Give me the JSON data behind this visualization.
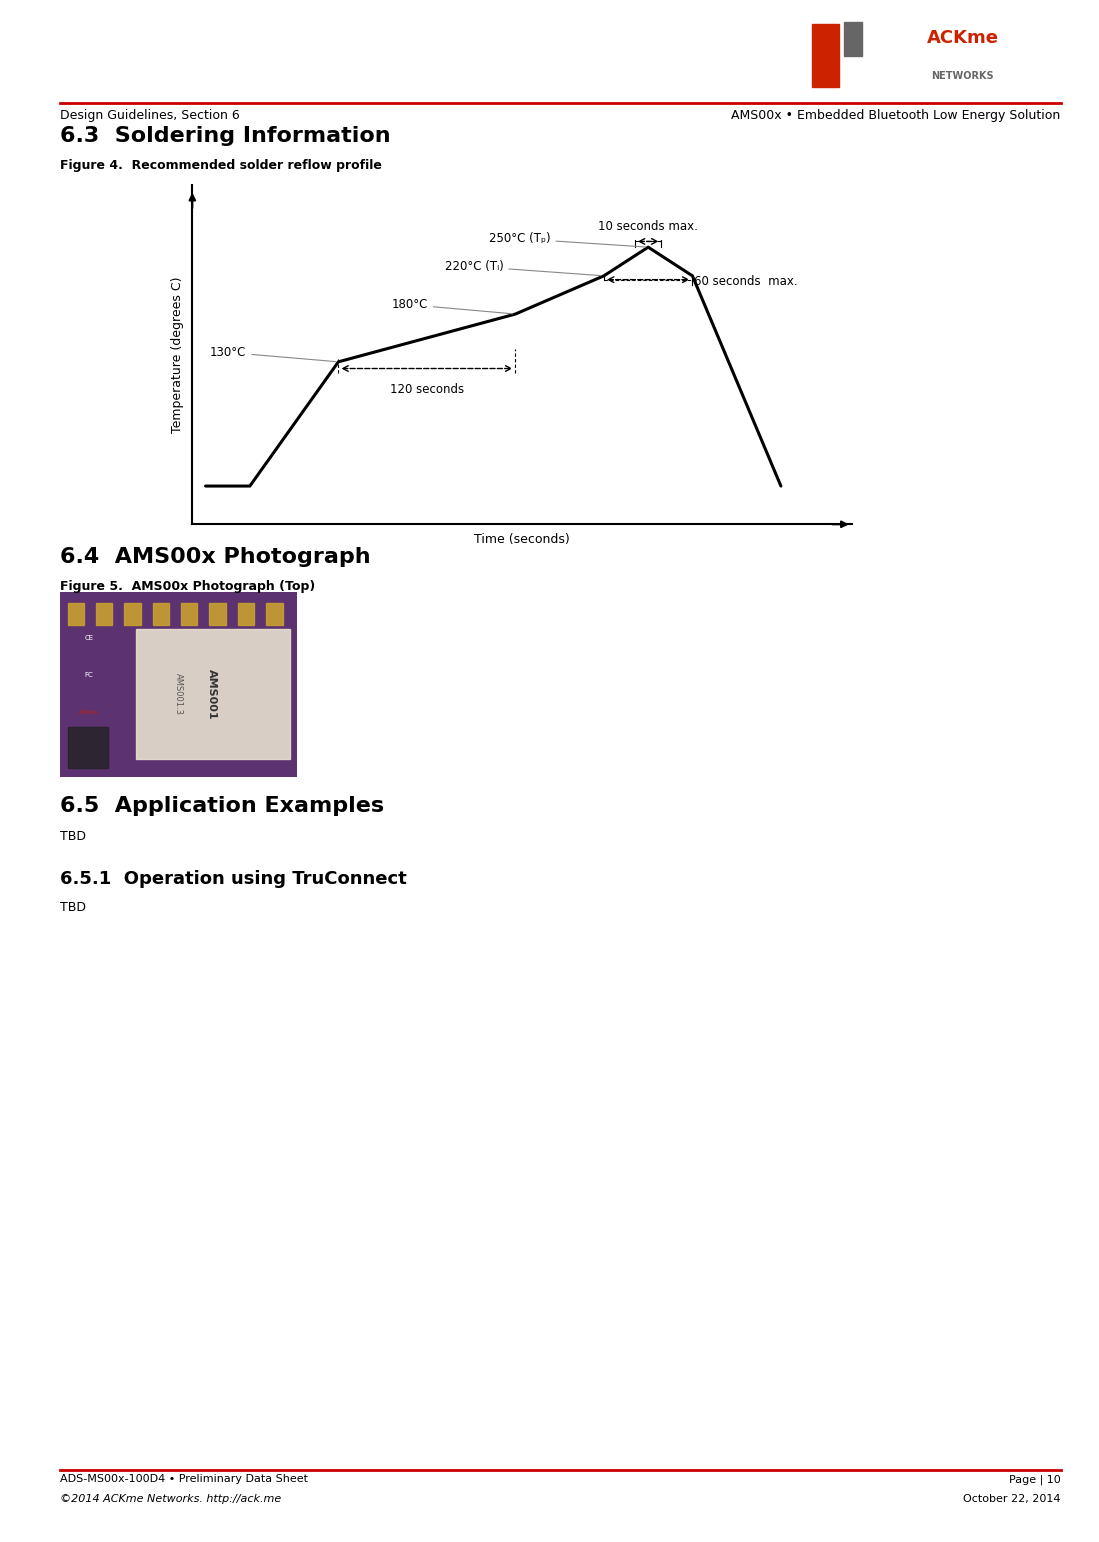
{
  "page_bg": "#ffffff",
  "header_line_color": "#cc0000",
  "header_left": "Design Guidelines, Section 6",
  "header_right": "AMS00x • Embedded Bluetooth Low Energy Solution",
  "footer_left_line1": "ADS-MS00x-100D4 • Preliminary Data Sheet",
  "footer_left_line2": "©2014 ACKme Networks. http://ack.me",
  "footer_right_line1": "Page | 10",
  "footer_right_line2": "October 22, 2014",
  "section_63_title": "6.3  Soldering Information",
  "fig4_caption": "Figure 4.  Recommended solder reflow profile",
  "section_64_title": "6.4  AMS00x Photograph",
  "fig5_caption": "Figure 5.  AMS00x Photograph (Top)",
  "section_65_title": "6.5  Application Examples",
  "section_651_title": "6.5.1  Operation using TruConnect",
  "tbd_text": "TBD",
  "xlabel": "Time (seconds)",
  "ylabel": "Temperature (degrees C)",
  "profile_points": [
    [
      0.0,
      0.0
    ],
    [
      0.5,
      0.0
    ],
    [
      1.5,
      130
    ],
    [
      3.5,
      180
    ],
    [
      4.5,
      220
    ],
    [
      5.0,
      250
    ],
    [
      5.5,
      220
    ],
    [
      6.5,
      0
    ]
  ],
  "label_130": "130°C",
  "label_180": "180°C",
  "label_220": "220°C (Tₗ)",
  "label_250": "250°C (Tₚ)",
  "label_120s": "120 seconds",
  "label_60s": "60 seconds  max.",
  "label_10s": "10 seconds max.",
  "text_color": "#000000",
  "line_color": "#000000",
  "annot_line_color": "#888888",
  "logo_red": "#cc2200",
  "logo_grey": "#666666"
}
